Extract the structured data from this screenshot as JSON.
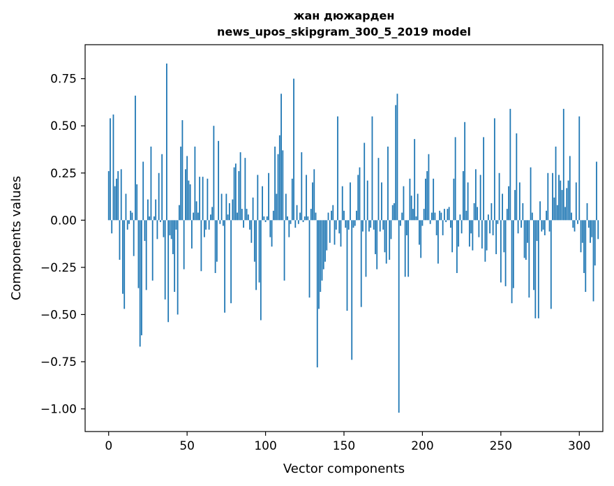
{
  "chart_data": {
    "type": "bar",
    "title": "жан дюжарден",
    "subtitle": "news_upos_skipgram_300_5_2019 model",
    "xlabel": "Vector components",
    "ylabel": "Components values",
    "xlim": [
      -15,
      315
    ],
    "ylim": [
      -1.12,
      0.93
    ],
    "x_ticks": [
      0,
      50,
      100,
      150,
      200,
      250,
      300
    ],
    "x_tick_labels": [
      "0",
      "50",
      "100",
      "150",
      "200",
      "250",
      "300"
    ],
    "y_ticks": [
      0.75,
      0.5,
      0.25,
      0.0,
      -0.25,
      -0.5,
      -0.75,
      -1.0
    ],
    "y_tick_labels": [
      "0.75",
      "0.50",
      "0.25",
      "0.00",
      "−0.25",
      "−0.50",
      "−0.75",
      "−1.00"
    ],
    "bar_color": "#1f77b4",
    "grid": false,
    "values": [
      0.26,
      0.54,
      -0.07,
      0.56,
      0.18,
      0.22,
      0.26,
      -0.21,
      0.27,
      -0.39,
      -0.47,
      0.14,
      -0.05,
      -0.02,
      0.05,
      0.04,
      -0.19,
      0.66,
      0.19,
      -0.36,
      -0.67,
      -0.61,
      0.31,
      -0.11,
      -0.37,
      0.11,
      0.02,
      0.39,
      -0.32,
      0.02,
      0.11,
      -0.1,
      0.25,
      -0.01,
      0.35,
      -0.09,
      -0.42,
      0.83,
      -0.54,
      -0.08,
      -0.1,
      -0.18,
      -0.38,
      -0.05,
      -0.5,
      0.08,
      0.39,
      0.53,
      -0.26,
      0.27,
      0.34,
      0.21,
      0.19,
      -0.15,
      0.04,
      0.39,
      0.1,
      0.04,
      0.23,
      -0.27,
      0.23,
      -0.09,
      -0.05,
      0.22,
      -0.05,
      0.03,
      0.07,
      0.5,
      -0.28,
      -0.22,
      0.42,
      -0.02,
      0.14,
      -0.03,
      -0.49,
      0.14,
      0.03,
      0.09,
      -0.44,
      0.11,
      0.28,
      0.3,
      0.04,
      0.26,
      0.36,
      0.06,
      -0.04,
      0.33,
      0.06,
      0.03,
      -0.05,
      -0.12,
      0.12,
      -0.22,
      -0.37,
      0.24,
      -0.33,
      -0.53,
      0.18,
      0.02,
      -0.01,
      0.02,
      0.25,
      -0.09,
      -0.14,
      0.05,
      0.39,
      0.14,
      0.35,
      0.45,
      0.67,
      0.37,
      -0.32,
      0.14,
      0.02,
      -0.09,
      -0.02,
      0.22,
      0.75,
      -0.04,
      0.08,
      -0.02,
      0.04,
      0.36,
      -0.01,
      0.02,
      0.24,
      0.02,
      -0.41,
      0.06,
      0.2,
      0.27,
      0.04,
      -0.78,
      -0.47,
      -0.38,
      -0.32,
      -0.26,
      -0.22,
      -0.16,
      0.04,
      -0.12,
      0.05,
      0.08,
      -0.13,
      -0.05,
      0.55,
      -0.07,
      -0.14,
      0.18,
      0.05,
      -0.04,
      -0.48,
      -0.05,
      0.2,
      -0.74,
      -0.04,
      -0.03,
      0.05,
      0.24,
      0.28,
      -0.46,
      -0.06,
      0.41,
      -0.3,
      0.21,
      -0.06,
      -0.04,
      0.55,
      -0.05,
      -0.18,
      -0.26,
      0.33,
      -0.06,
      0.2,
      -0.05,
      -0.17,
      -0.23,
      0.39,
      -0.21,
      -0.1,
      0.08,
      0.09,
      0.61,
      0.67,
      -1.02,
      -0.03,
      0.04,
      0.18,
      -0.3,
      -0.08,
      -0.3,
      0.22,
      0.13,
      0.06,
      0.43,
      0.02,
      0.14,
      -0.13,
      -0.2,
      -0.03,
      0.06,
      0.22,
      0.26,
      0.35,
      -0.02,
      0.04,
      0.22,
      0.04,
      -0.08,
      -0.23,
      0.05,
      0.04,
      -0.08,
      0.06,
      -0.01,
      0.06,
      0.07,
      -0.04,
      -0.17,
      0.22,
      0.44,
      -0.28,
      -0.14,
      0.03,
      -0.07,
      0.26,
      0.52,
      0.05,
      0.2,
      -0.14,
      -0.07,
      -0.16,
      0.09,
      0.27,
      0.07,
      -0.09,
      0.24,
      -0.15,
      0.44,
      -0.22,
      -0.16,
      0.03,
      -0.07,
      0.09,
      -0.08,
      0.54,
      -0.18,
      -0.02,
      0.25,
      -0.33,
      0.14,
      -0.17,
      -0.35,
      0.06,
      0.18,
      0.59,
      -0.44,
      -0.36,
      0.16,
      0.46,
      -0.07,
      0.2,
      -0.04,
      0.09,
      -0.2,
      -0.21,
      -0.12,
      -0.41,
      0.28,
      0.04,
      -0.37,
      -0.52,
      -0.11,
      -0.52,
      0.1,
      -0.06,
      -0.05,
      -0.08,
      0.05,
      0.25,
      -0.06,
      -0.47,
      0.25,
      0.12,
      0.39,
      0.08,
      0.24,
      0.21,
      0.16,
      0.59,
      0.07,
      0.17,
      0.21,
      0.34,
      0.04,
      -0.04,
      -0.06,
      0.2,
      -0.02,
      0.55,
      -0.17,
      -0.12,
      -0.28,
      -0.38,
      0.09,
      -0.04,
      -0.12,
      -0.09,
      -0.43,
      -0.24,
      0.31,
      -0.1
    ]
  }
}
